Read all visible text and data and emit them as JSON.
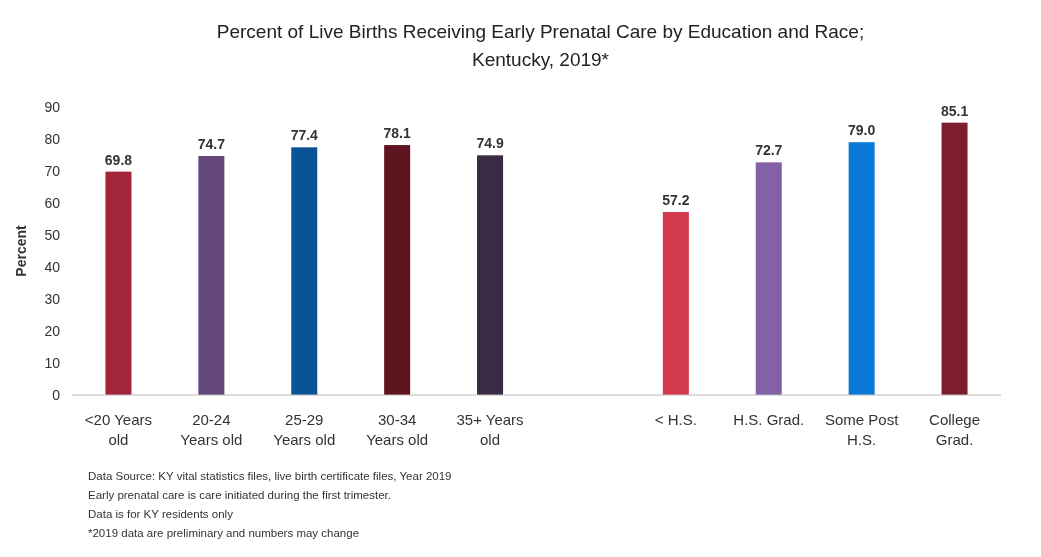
{
  "chart_data": {
    "type": "bar",
    "title": "Percent of Live Births Receiving Early Prenatal Care by Education and Race; Kentucky, 2019*",
    "ylabel": "Percent",
    "categories": [
      "<20 Years old",
      "20-24 Years old",
      "25-29 Years old",
      "30-34 Years old",
      "35+ Years old",
      null,
      "< H.S.",
      "H.S. Grad.",
      "Some Post H.S.",
      "College Grad."
    ],
    "values": [
      69.8,
      74.7,
      77.4,
      78.1,
      74.9,
      null,
      57.2,
      72.7,
      79.0,
      85.1
    ],
    "value_labels": [
      "69.8",
      "74.7",
      "77.4",
      "78.1",
      "74.9",
      null,
      "57.2",
      "72.7",
      "79.0",
      "85.1"
    ],
    "colors": [
      "#a3253a",
      "#64477a",
      "#0a5394",
      "#5e1520",
      "#3b2a44",
      null,
      "#d13a4a",
      "#8460a6",
      "#0a7ad6",
      "#7d1e2c"
    ],
    "ylim": [
      0,
      90
    ],
    "yticks": [
      0,
      10,
      20,
      30,
      40,
      50,
      60,
      70,
      80,
      90
    ],
    "grid": false,
    "annotations": [
      "Data Source: KY vital statistics files, live birth certificate files, Year 2019",
      "Early prenatal care is care initiated during the first trimester.",
      "Data is for KY residents only",
      "*2019 data are preliminary and numbers may change"
    ]
  }
}
